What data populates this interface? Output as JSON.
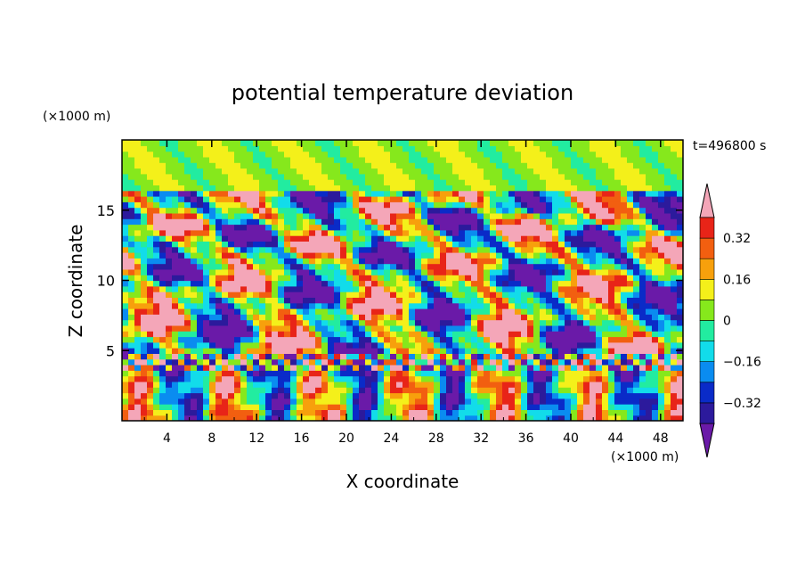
{
  "chart_data": {
    "type": "heatmap",
    "title": "potential temperature deviation",
    "xlabel": "X coordinate",
    "ylabel": "Z coordinate",
    "x_unit": "(×1000 m)",
    "y_unit": "(×1000 m)",
    "time_label": "t=496800 s",
    "xlim": [
      0,
      50
    ],
    "ylim": [
      0,
      20
    ],
    "x_ticks": [
      "4",
      "8",
      "12",
      "16",
      "20",
      "24",
      "28",
      "32",
      "36",
      "40",
      "44",
      "48"
    ],
    "x_tick_values": [
      4,
      8,
      12,
      16,
      20,
      24,
      28,
      32,
      36,
      40,
      44,
      48
    ],
    "y_ticks": [
      "5",
      "10",
      "15"
    ],
    "y_tick_values": [
      5,
      10,
      15
    ],
    "colorbar": {
      "labels": [
        "0.32",
        "0.16",
        "0",
        "−0.16",
        "−0.32"
      ],
      "label_values": [
        0.32,
        0.16,
        0,
        -0.16,
        -0.32
      ],
      "levels": [
        -0.4,
        -0.32,
        -0.24,
        -0.16,
        -0.08,
        0,
        0.08,
        0.16,
        0.24,
        0.32,
        0.4
      ],
      "colors": [
        "#6a1aa8",
        "#2c1a9c",
        "#0a2bc8",
        "#0a8cf0",
        "#12dcea",
        "#22eca0",
        "#86e81c",
        "#f4f01a",
        "#f7a00c",
        "#f25f10",
        "#e82418",
        "#f4a6b8"
      ]
    }
  }
}
